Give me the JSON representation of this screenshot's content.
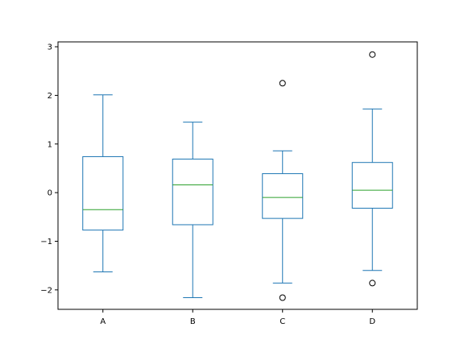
{
  "chart_data": {
    "type": "box",
    "categories": [
      "A",
      "B",
      "C",
      "D"
    ],
    "ylim": [
      -2.4,
      3.1
    ],
    "yticks": [
      -2,
      -1,
      0,
      1,
      2,
      3
    ],
    "ytick_labels": [
      "−2",
      "−1",
      "0",
      "1",
      "2",
      "3"
    ],
    "grid": false,
    "title": "",
    "xlabel": "",
    "ylabel": "",
    "colors": {
      "box": "#1f77b4",
      "median": "#2ca02c",
      "flier": "#000000",
      "axes": "#000000"
    },
    "boxes": [
      {
        "category": "A",
        "whisker_low": -1.63,
        "q1": -0.77,
        "median": -0.35,
        "q3": 0.74,
        "whisker_high": 2.01,
        "fliers": []
      },
      {
        "category": "B",
        "whisker_low": -2.16,
        "q1": -0.66,
        "median": 0.16,
        "q3": 0.69,
        "whisker_high": 1.45,
        "fliers": []
      },
      {
        "category": "C",
        "whisker_low": -1.86,
        "q1": -0.53,
        "median": -0.1,
        "q3": 0.39,
        "whisker_high": 0.86,
        "fliers": [
          2.25,
          -2.16
        ]
      },
      {
        "category": "D",
        "whisker_low": -1.6,
        "q1": -0.32,
        "median": 0.05,
        "q3": 0.62,
        "whisker_high": 1.72,
        "fliers": [
          2.84,
          -1.86
        ]
      }
    ]
  }
}
